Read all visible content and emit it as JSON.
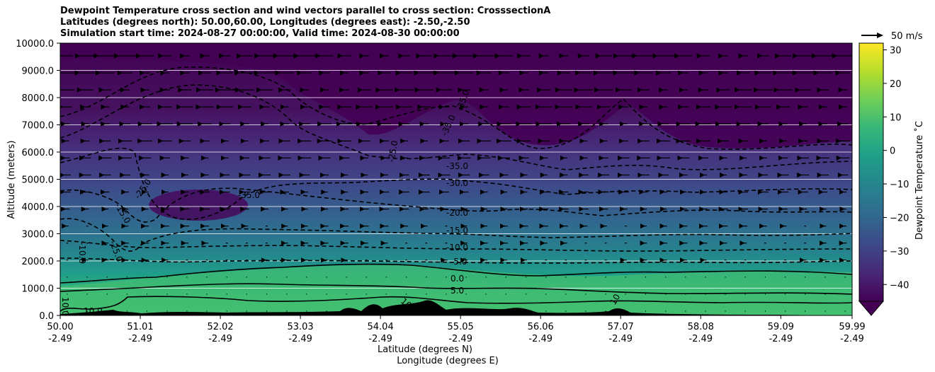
{
  "chart_data": {
    "type": "contour",
    "title_lines": [
      "Dewpoint Temperature cross section and wind vectors parallel to cross section: CrosssectionA",
      "Latitudes (degrees north): 50.00,60.00, Longitudes (degrees east): -2.50,-2.50",
      "Simulation start time: 2024-08-27 00:00:00, Valid time: 2024-08-30 00:00:00"
    ],
    "ylabel": "Altitude (meters)",
    "xlabel_lat": "Latitude (degrees N)",
    "xlabel_lon": "Longitude (degrees E)",
    "ylim": [
      0,
      10000
    ],
    "y_ticks": [
      "0.0",
      "1000.0",
      "2000.0",
      "3000.0",
      "4000.0",
      "5000.0",
      "6000.0",
      "7000.0",
      "8000.0",
      "9000.0",
      "10000.0"
    ],
    "x_ticks_lat": [
      "50.00",
      "51.01",
      "52.02",
      "53.03",
      "54.04",
      "55.05",
      "56.06",
      "57.07",
      "58.08",
      "59.09",
      "59.99"
    ],
    "x_ticks_lon": [
      "-2.49",
      "-2.49",
      "-2.49",
      "-2.49",
      "-2.49",
      "-2.49",
      "-2.49",
      "-2.49",
      "-2.49",
      "-2.49",
      "-2.49"
    ],
    "xlim": [
      50.0,
      59.99
    ],
    "horizontal_grid": true,
    "colorbar": {
      "label": "Dewpoint Temperature ˚C",
      "ticks": [
        "30",
        "20",
        "10",
        "0",
        "−10",
        "−20",
        "−30",
        "−40"
      ],
      "range": [
        -45,
        32
      ],
      "extend": "min",
      "colormap": [
        "#440154",
        "#482878",
        "#3e4989",
        "#31688e",
        "#26828e",
        "#1f9e89",
        "#35b779",
        "#6ece58",
        "#b5de2b",
        "#fde725"
      ]
    },
    "wind_key": {
      "label": "50 m/s"
    },
    "contour_labels": [
      "-35.0",
      "-35.0",
      "-25.0",
      "-35.0",
      "-30.0",
      "-20.0",
      "-15.0",
      "-10.0",
      "-5.0",
      "0.0",
      "5.0",
      "-25.0",
      "-15.0",
      "-35.0",
      "-25.0",
      "-10.0",
      "10.0",
      "10.0",
      "10",
      "10.0"
    ],
    "surface_color": "#000000"
  }
}
